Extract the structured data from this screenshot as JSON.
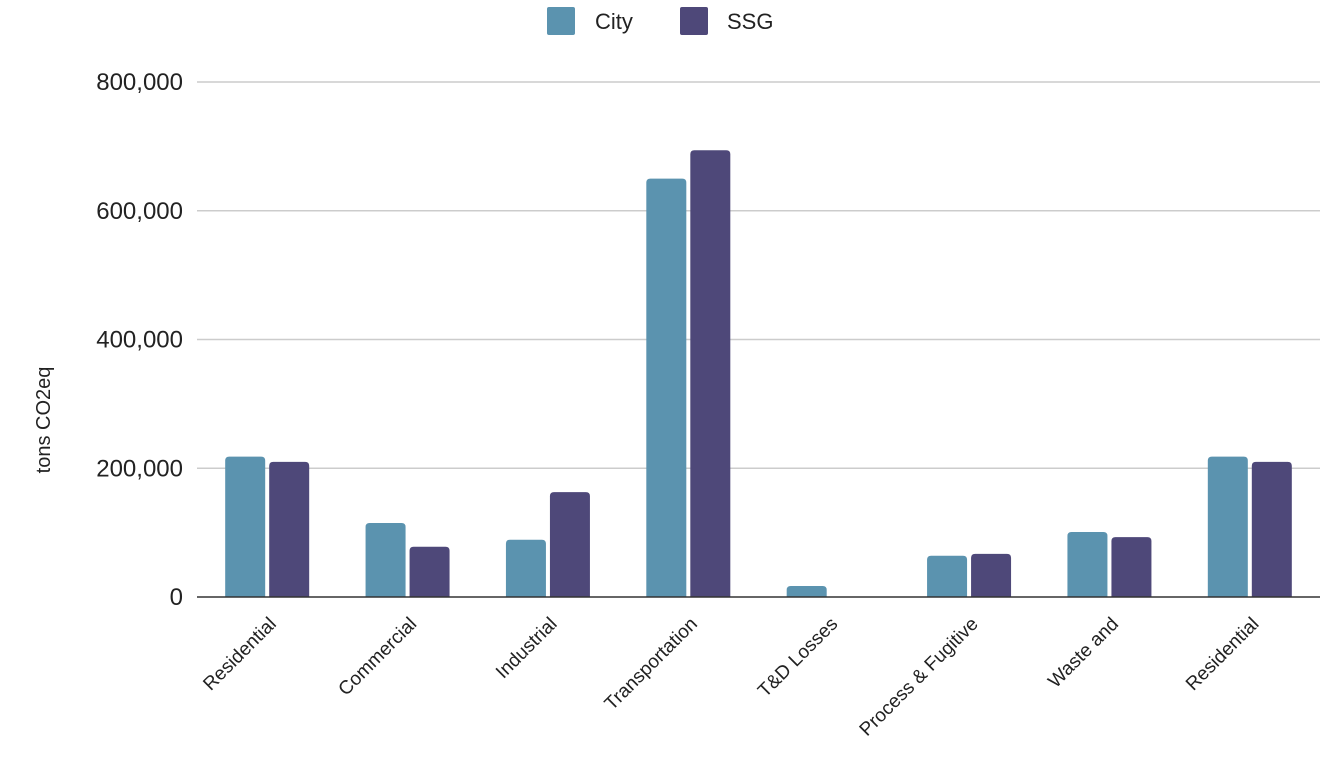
{
  "chart_data": {
    "type": "bar",
    "title": "",
    "xlabel": "",
    "ylabel": "tons CO2eq",
    "ylim": [
      0,
      800000
    ],
    "yticks": [
      0,
      200000,
      400000,
      600000,
      800000
    ],
    "ytick_labels": [
      "0",
      "200,000",
      "400,000",
      "600,000",
      "800,000"
    ],
    "grid": true,
    "legend_position": "top-center",
    "categories": [
      "Residential",
      "Commercial",
      "Industrial",
      "Transportation",
      "T&D Losses",
      "Process & Fugitive",
      "Waste and",
      "Residential"
    ],
    "series": [
      {
        "name": "City",
        "color": "#5b93af",
        "values": [
          218000,
          115000,
          89000,
          650000,
          17000,
          64000,
          101000,
          218000
        ]
      },
      {
        "name": "SSG",
        "color": "#4e4879",
        "values": [
          210000,
          78000,
          163000,
          694000,
          0,
          67000,
          93000,
          210000
        ]
      }
    ]
  }
}
